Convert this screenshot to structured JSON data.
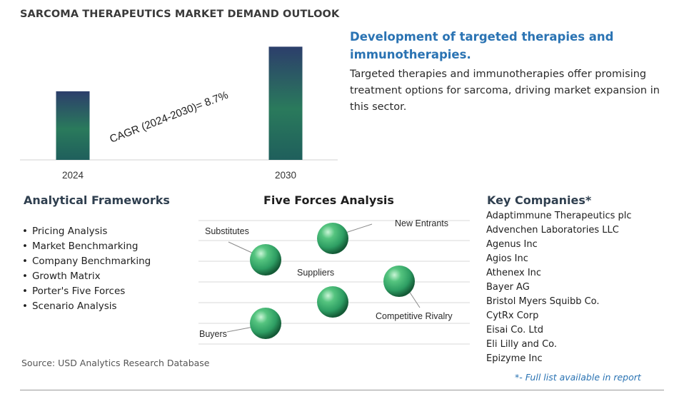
{
  "header": {
    "title": "SARCOMA THERAPEUTICS MARKET DEMAND OUTLOOK"
  },
  "chart_data": {
    "type": "bar",
    "categories": [
      "2024",
      "2030"
    ],
    "values": [
      1.0,
      1.65
    ],
    "title": "",
    "xlabel": "",
    "ylabel": "",
    "ylim": [
      0,
      1.8
    ],
    "grid": false,
    "annotation": "CAGR (2024-2030)=  8.7%",
    "bar_colors": [
      "#1f5f5c",
      "#2a7a5c",
      "#2c3e6b"
    ]
  },
  "highlight": {
    "title": "Development of targeted therapies and immunotherapies.",
    "description": "Targeted therapies and immunotherapies offer promising treatment options for sarcoma, driving market expansion in this sector."
  },
  "analytical_frameworks": {
    "title": "Analytical Frameworks",
    "items": [
      "Pricing Analysis",
      "Market Benchmarking",
      "Company Benchmarking",
      "Growth Matrix",
      "Porter's Five Forces",
      "Scenario Analysis"
    ]
  },
  "five_forces": {
    "title": "Five Forces Analysis",
    "labels": {
      "substitutes": "Substitutes",
      "new_entrants": "New Entrants",
      "suppliers": "Suppliers",
      "competitive_rivalry": "Competitive Rivalry",
      "buyers": "Buyers"
    },
    "sphere_color": "#2e9e63"
  },
  "key_companies": {
    "title": "Key Companies*",
    "items": [
      "Adaptimmune Therapeutics plc",
      "Advenchen Laboratories LLC",
      "Agenus Inc",
      "Agios Inc",
      "Athenex Inc",
      "Bayer AG",
      "Bristol Myers Squibb Co.",
      "CytRx Corp",
      "Eisai Co. Ltd",
      "Eli Lilly and Co.",
      "Epizyme Inc"
    ],
    "note": "*- Full list available in report"
  },
  "source": "Source: USD Analytics Research Database"
}
